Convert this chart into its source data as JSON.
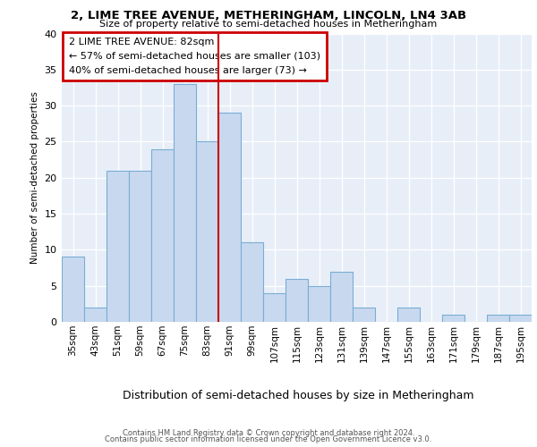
{
  "title1": "2, LIME TREE AVENUE, METHERINGHAM, LINCOLN, LN4 3AB",
  "title2": "Size of property relative to semi-detached houses in Metheringham",
  "xlabel": "Distribution of semi-detached houses by size in Metheringham",
  "ylabel": "Number of semi-detached properties",
  "categories": [
    "35sqm",
    "43sqm",
    "51sqm",
    "59sqm",
    "67sqm",
    "75sqm",
    "83sqm",
    "91sqm",
    "99sqm",
    "107sqm",
    "115sqm",
    "123sqm",
    "131sqm",
    "139sqm",
    "147sqm",
    "155sqm",
    "163sqm",
    "171sqm",
    "179sqm",
    "187sqm",
    "195sqm"
  ],
  "values": [
    9,
    2,
    21,
    21,
    24,
    33,
    25,
    29,
    11,
    4,
    6,
    5,
    7,
    2,
    0,
    2,
    0,
    1,
    0,
    1,
    1
  ],
  "bar_color": "#c8d9ef",
  "bar_edge_color": "#7aadd4",
  "highlight_index": 6,
  "annotation_text": "2 LIME TREE AVENUE: 82sqm\n← 57% of semi-detached houses are smaller (103)\n40% of semi-detached houses are larger (73) →",
  "annotation_box_color": "#ffffff",
  "annotation_box_edge": "#cc0000",
  "vline_color": "#cc0000",
  "ylim": [
    0,
    40
  ],
  "yticks": [
    0,
    5,
    10,
    15,
    20,
    25,
    30,
    35,
    40
  ],
  "bg_color": "#e8eef8",
  "grid_color": "#ffffff",
  "footer1": "Contains HM Land Registry data © Crown copyright and database right 2024.",
  "footer2": "Contains public sector information licensed under the Open Government Licence v3.0."
}
